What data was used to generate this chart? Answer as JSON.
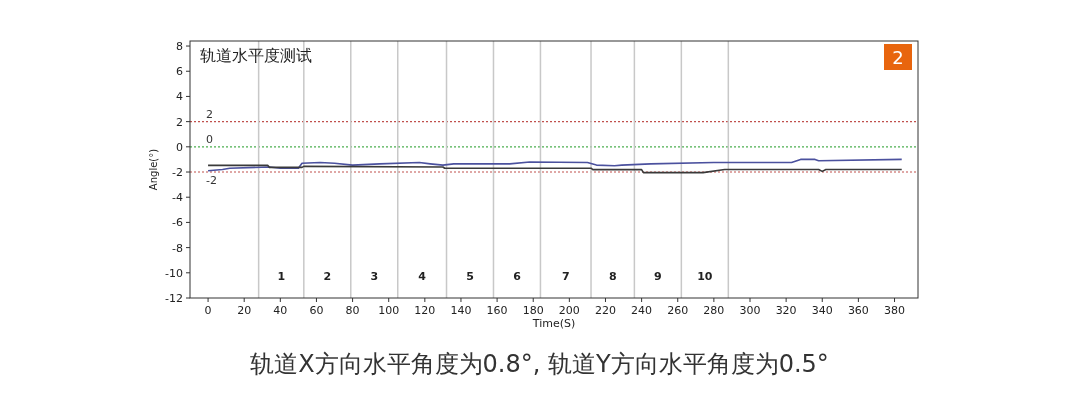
{
  "chart_data": {
    "type": "line",
    "title": "轨道水平度测试",
    "subtitle": "轨道X方向水平角度为0.8°, 轨道Y方向水平角度为0.5°",
    "xlabel": "Time(S)",
    "ylabel": "Angle(°)",
    "xlim": [
      -10,
      393
    ],
    "ylim": [
      -12,
      8.4
    ],
    "xticks": [
      0,
      20,
      40,
      60,
      80,
      100,
      120,
      140,
      160,
      180,
      200,
      220,
      240,
      260,
      280,
      300,
      320,
      340,
      360,
      380
    ],
    "yticks": [
      -12,
      -10,
      -8,
      -6,
      -4,
      -2,
      0,
      2,
      4,
      6,
      8
    ],
    "grid": false,
    "line_style": "solid",
    "marker": "none",
    "series": [
      {
        "color": "#4b519e",
        "x": [
          0,
          8,
          12,
          34,
          40,
          50,
          52,
          62,
          70,
          80,
          95,
          117,
          123,
          130,
          136,
          167,
          178,
          210,
          215,
          225,
          229,
          245,
          280,
          289,
          323,
          328,
          336,
          338,
          384
        ],
        "values": [
          -1.9,
          -1.8,
          -1.7,
          -1.6,
          -1.7,
          -1.7,
          -1.3,
          -1.25,
          -1.3,
          -1.45,
          -1.35,
          -1.25,
          -1.35,
          -1.45,
          -1.35,
          -1.35,
          -1.2,
          -1.25,
          -1.45,
          -1.5,
          -1.45,
          -1.35,
          -1.25,
          -1.25,
          -1.25,
          -1.0,
          -1.0,
          -1.1,
          -1.0
        ]
      },
      {
        "color": "#3a3a3a",
        "x": [
          0,
          33,
          34,
          52,
          53,
          130,
          131,
          212,
          213,
          240,
          241,
          274,
          286,
          321,
          338,
          340,
          342,
          353,
          384
        ],
        "values": [
          -1.47,
          -1.47,
          -1.63,
          -1.63,
          -1.55,
          -1.6,
          -1.7,
          -1.7,
          -1.81,
          -1.81,
          -2.05,
          -2.05,
          -1.8,
          -1.8,
          -1.8,
          -1.95,
          -1.8,
          -1.8,
          -1.8
        ]
      }
    ],
    "ref_lines": [
      {
        "axis": "y",
        "value": 2,
        "label": "2",
        "color": "#c0504d",
        "line_style": "dotted"
      },
      {
        "axis": "y",
        "value": 0,
        "label": "0",
        "color": "#4caf50",
        "line_style": "dotted"
      },
      {
        "axis": "y",
        "value": -2,
        "label": "-2",
        "color": "#c0504d",
        "line_style": "dotted"
      },
      {
        "axis": "x",
        "value": 28,
        "color": "#c8c8c8"
      },
      {
        "axis": "x",
        "value": 53,
        "color": "#c8c8c8"
      },
      {
        "axis": "x",
        "value": 79,
        "color": "#c8c8c8"
      },
      {
        "axis": "x",
        "value": 105,
        "color": "#c8c8c8"
      },
      {
        "axis": "x",
        "value": 132,
        "color": "#c8c8c8"
      },
      {
        "axis": "x",
        "value": 158,
        "color": "#c8c8c8"
      },
      {
        "axis": "x",
        "value": 184,
        "color": "#c8c8c8"
      },
      {
        "axis": "x",
        "value": 212,
        "color": "#c8c8c8"
      },
      {
        "axis": "x",
        "value": 236,
        "color": "#c8c8c8"
      },
      {
        "axis": "x",
        "value": 262,
        "color": "#c8c8c8"
      },
      {
        "axis": "x",
        "value": 288,
        "color": "#c8c8c8"
      }
    ],
    "annotations": [
      "2",
      "1",
      "2",
      "3",
      "4",
      "5",
      "6",
      "7",
      "8",
      "9",
      "10"
    ]
  }
}
